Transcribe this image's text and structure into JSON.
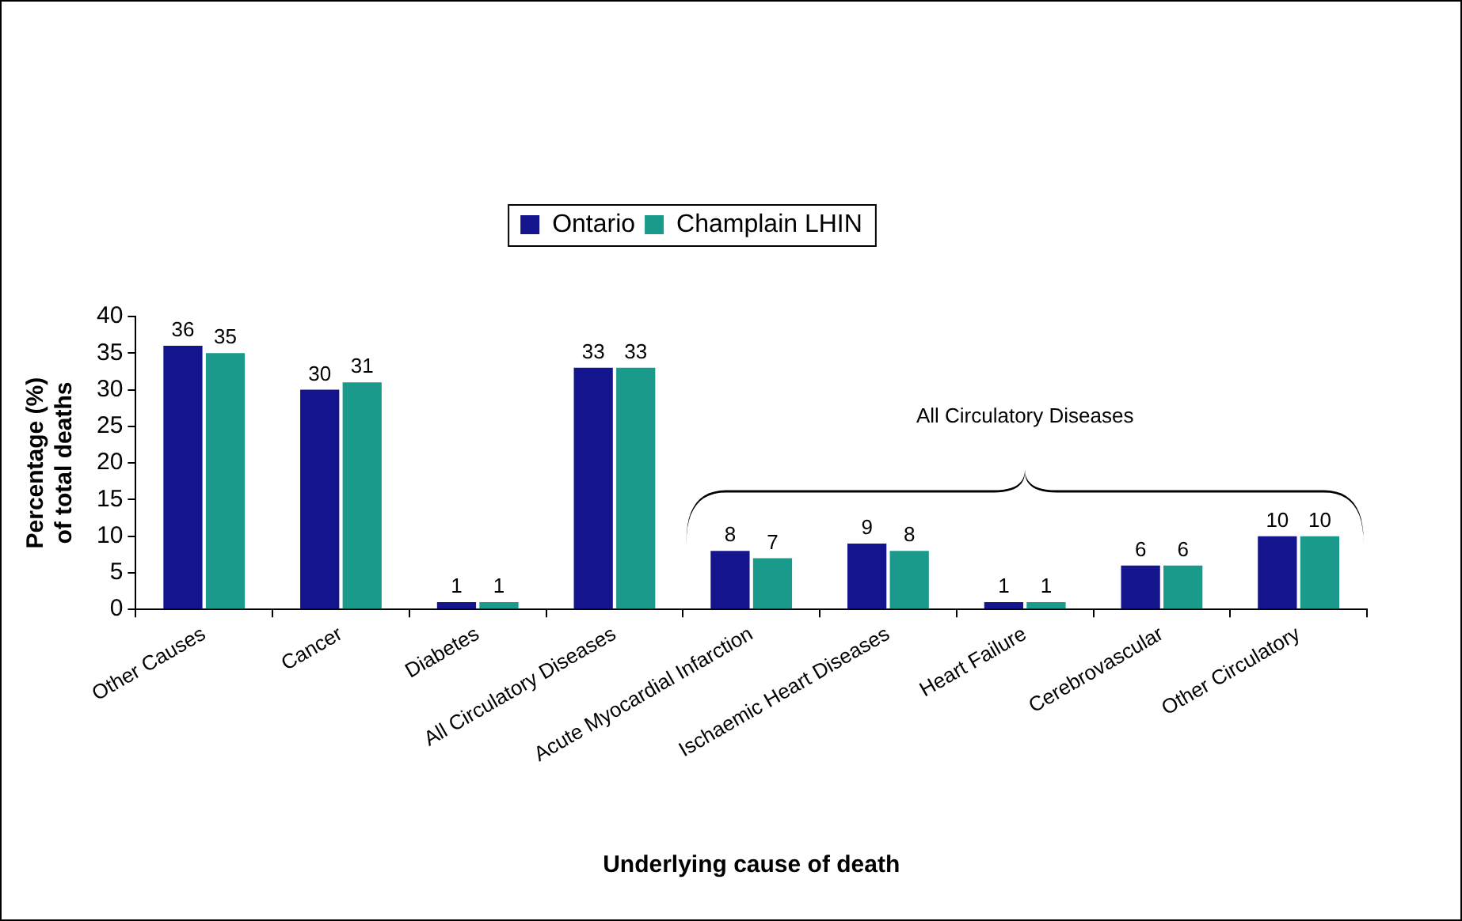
{
  "chart_data": {
    "type": "bar",
    "xlabel": "Underlying cause of death",
    "ylabel": "Percentage (%) of total deaths",
    "categories": [
      "Other Causes",
      "Cancer",
      "Diabetes",
      "All Circulatory Diseases",
      "Acute Myocardial Infarction",
      "Ischaemic Heart Diseases",
      "Heart Failure",
      "Cerebrovascular",
      "Other Circulatory"
    ],
    "series": [
      {
        "name": "Ontario",
        "color": "#14148c",
        "values": [
          36,
          30,
          1,
          33,
          8,
          9,
          1,
          6,
          10
        ]
      },
      {
        "name": "Champlain LHIN",
        "color": "#1a9a8a",
        "values": [
          35,
          31,
          1,
          33,
          7,
          8,
          1,
          6,
          10
        ]
      }
    ],
    "ylim": [
      0,
      40
    ],
    "yticks": [
      0,
      5,
      10,
      15,
      20,
      25,
      30,
      35,
      40
    ],
    "data_labels": true,
    "legend": "top",
    "annotations": [
      "All Circulatory Diseases"
    ]
  }
}
